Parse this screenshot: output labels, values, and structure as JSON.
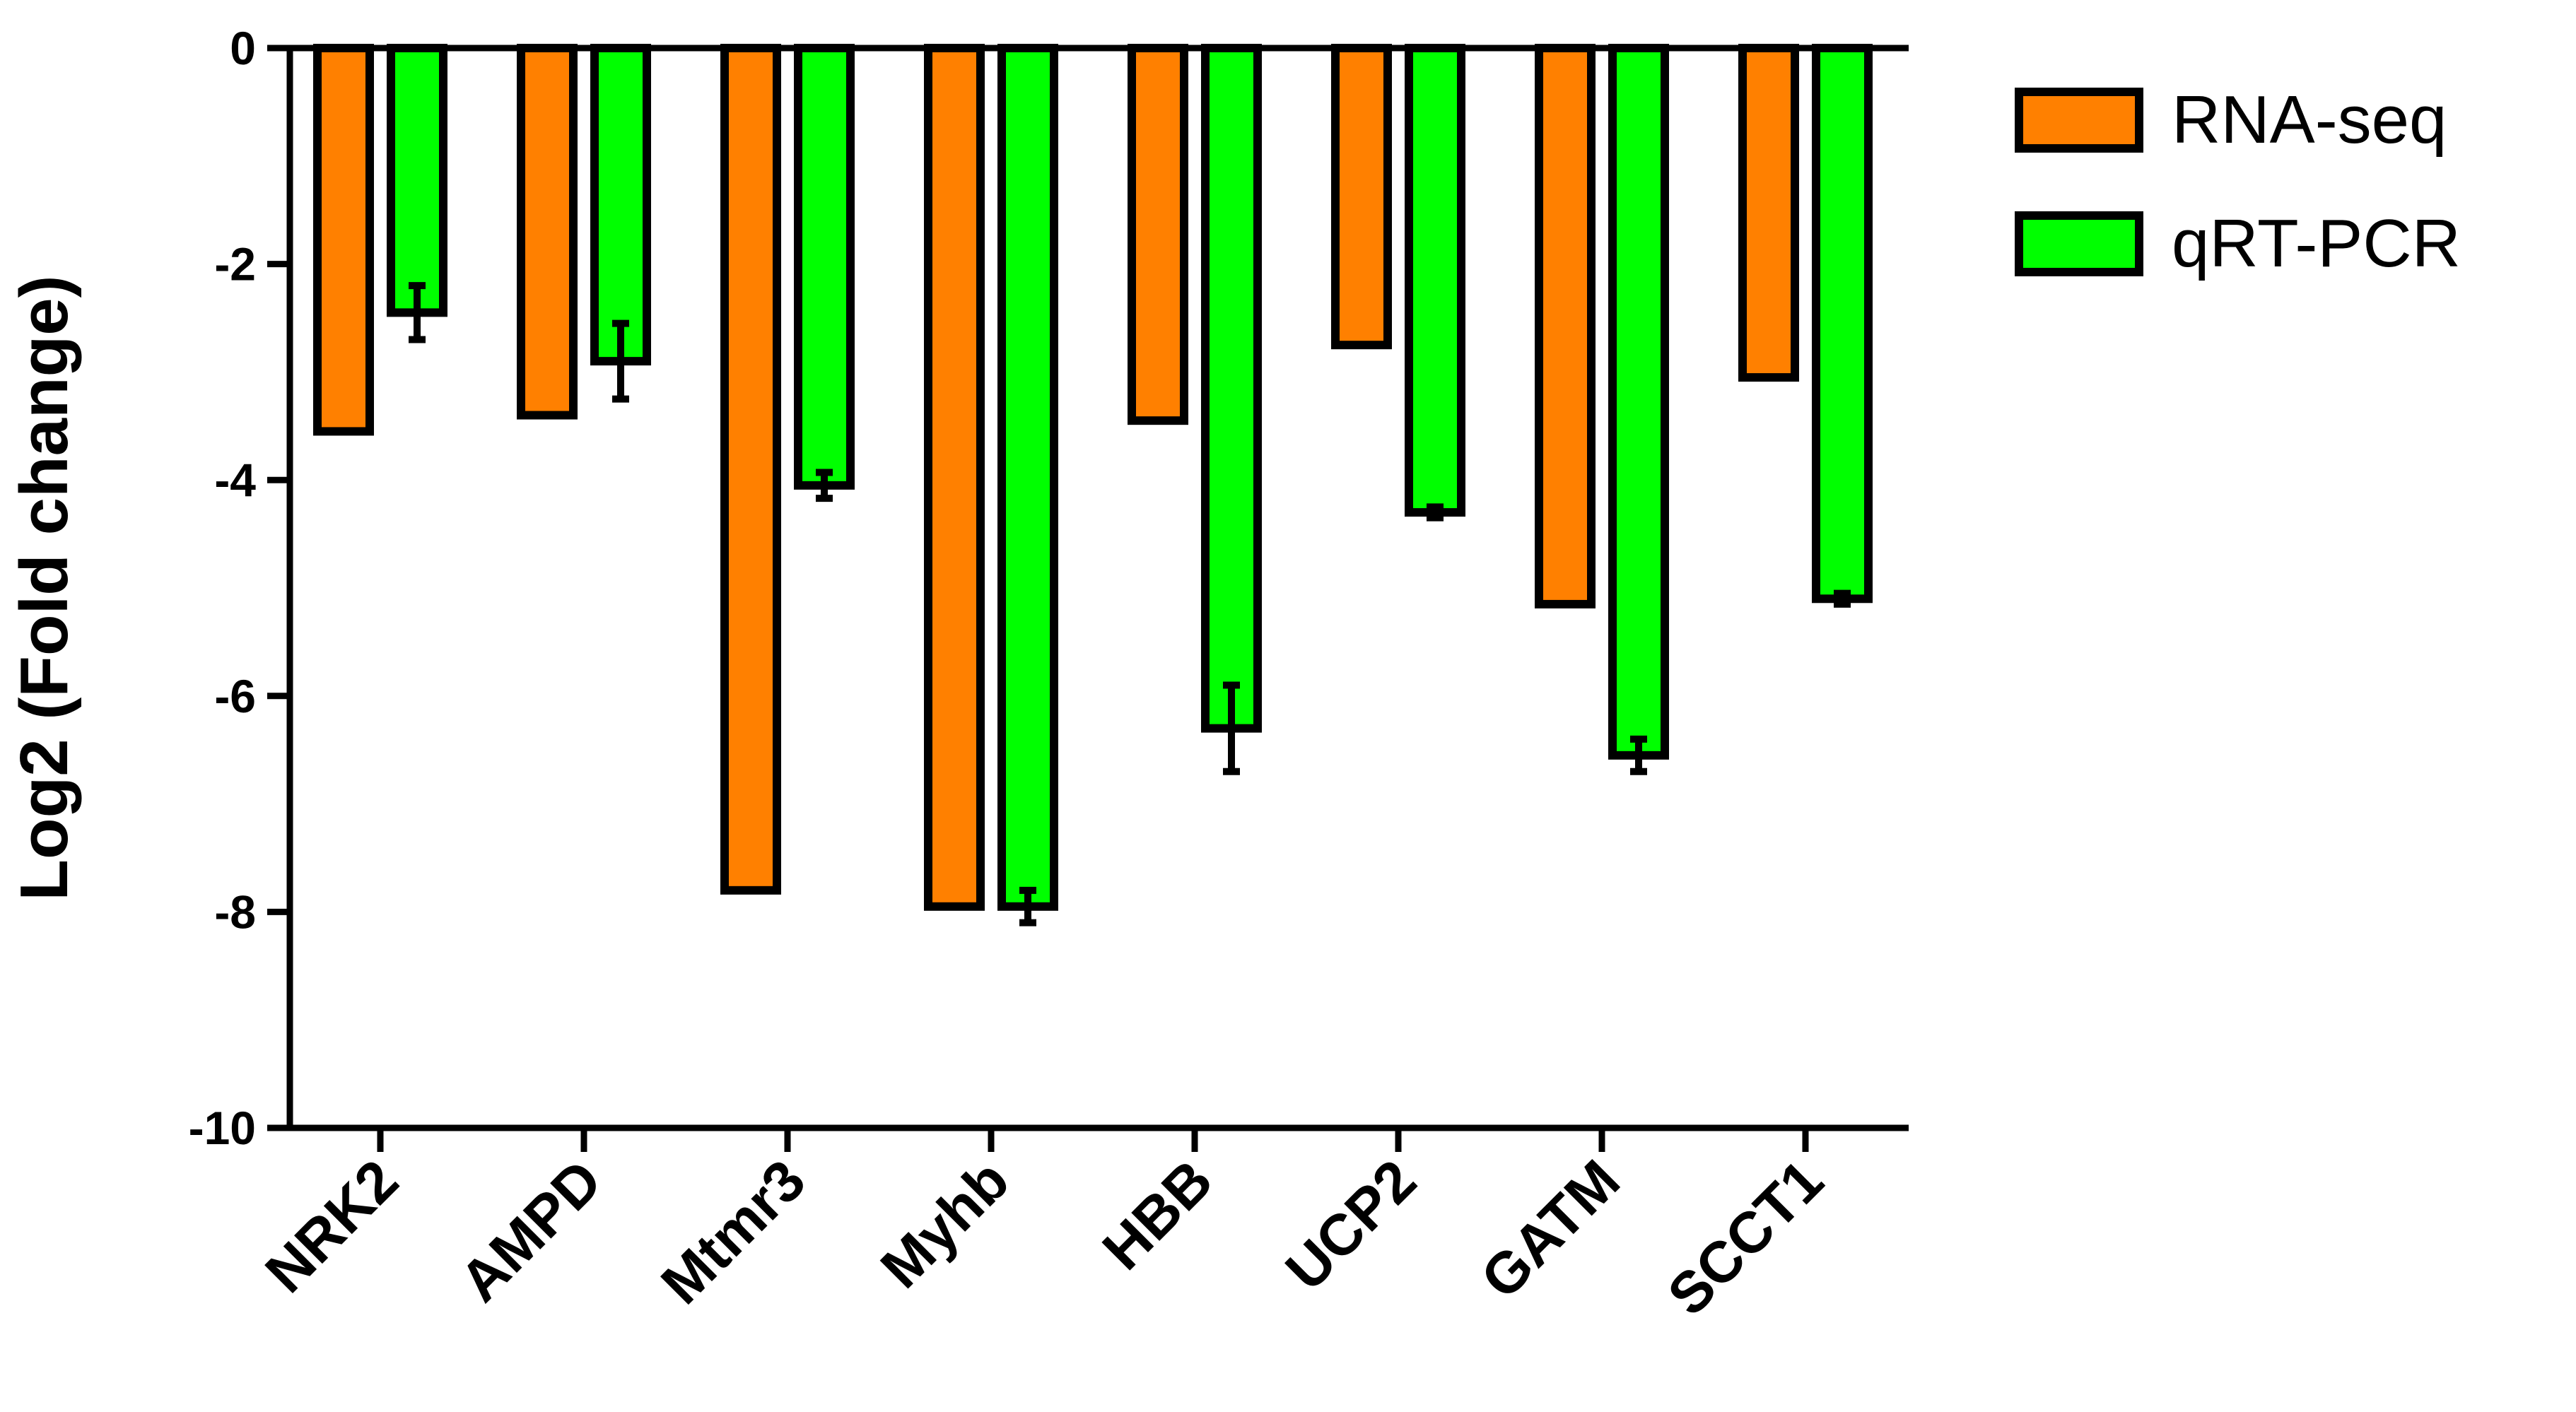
{
  "chart_data": {
    "type": "bar",
    "ylabel": "Log2 (Fold change)",
    "xlabel": "",
    "ylim": [
      -10,
      0
    ],
    "yticks": [
      0,
      -2,
      -4,
      -6,
      -8,
      -10
    ],
    "ytick_labels": [
      "0",
      "-2",
      "-4",
      "-6",
      "-8",
      "-10"
    ],
    "categories": [
      "NRK2",
      "AMPD",
      "Mtmr3",
      "Myhb",
      "HBB",
      "UCP2",
      "GATM",
      "SCCT1"
    ],
    "series": [
      {
        "name": "RNA-seq",
        "color": "#FF8000",
        "values": [
          -3.55,
          -3.4,
          -7.8,
          -7.95,
          -3.45,
          -2.75,
          -5.15,
          -3.05
        ],
        "errors": [
          0,
          0,
          0,
          0,
          0,
          0,
          0,
          0
        ]
      },
      {
        "name": "qRT-PCR",
        "color": "#00FF00",
        "values": [
          -2.45,
          -2.9,
          -4.05,
          -7.95,
          -6.3,
          -4.3,
          -6.55,
          -5.1
        ],
        "errors": [
          0.25,
          0.35,
          0.12,
          0.15,
          0.4,
          0.05,
          0.15,
          0.05
        ]
      }
    ],
    "legend_position": "top-right",
    "grid": false
  }
}
